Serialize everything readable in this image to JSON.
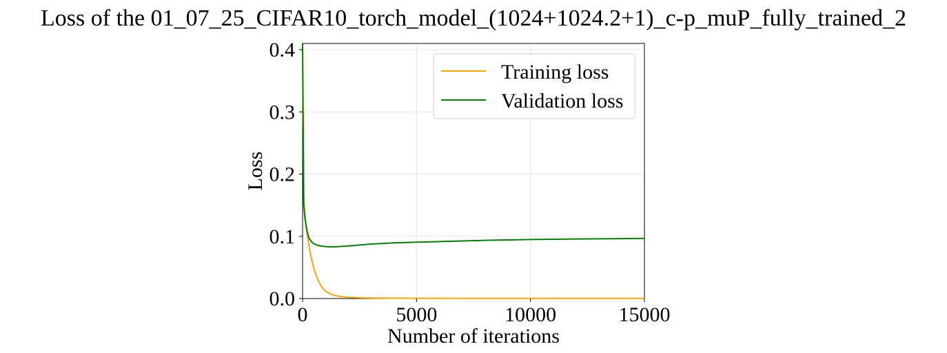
{
  "chart_data": {
    "type": "line",
    "title": "Loss of the 01_07_25_CIFAR10_torch_model_(1024+1024.2+1)_c-p_muP_fully_trained_2",
    "xlabel": "Number of iterations",
    "ylabel": "Loss",
    "xlim": [
      0,
      15000
    ],
    "ylim": [
      0,
      0.41
    ],
    "xticks": [
      0,
      5000,
      10000,
      15000
    ],
    "xtick_labels": [
      "0",
      "5000",
      "10000",
      "15000"
    ],
    "yticks": [
      0.0,
      0.1,
      0.2,
      0.3,
      0.4
    ],
    "ytick_labels": [
      "0.0",
      "0.1",
      "0.2",
      "0.3",
      "0.4"
    ],
    "grid": true,
    "legend_position": "top-right",
    "series": [
      {
        "name": "Training loss",
        "color": "#ffa500",
        "x": [
          0,
          50,
          100,
          150,
          200,
          300,
          400,
          500,
          600,
          700,
          800,
          900,
          1000,
          1200,
          1400,
          1600,
          1800,
          2000,
          2500,
          3000,
          4000,
          5000,
          7000,
          10000,
          12500,
          15000
        ],
        "y": [
          0.41,
          0.16,
          0.135,
          0.118,
          0.104,
          0.08,
          0.062,
          0.048,
          0.037,
          0.028,
          0.021,
          0.016,
          0.012,
          0.008,
          0.005,
          0.0035,
          0.0025,
          0.002,
          0.0012,
          0.0008,
          0.0005,
          0.0004,
          0.0003,
          0.0002,
          0.0002,
          0.0002
        ]
      },
      {
        "name": "Validation loss",
        "color": "#008000",
        "x": [
          0,
          50,
          100,
          150,
          200,
          250,
          300,
          400,
          500,
          700,
          1000,
          1300,
          1600,
          2000,
          2500,
          3000,
          3500,
          4000,
          5000,
          6000,
          7000,
          8000,
          9000,
          10000,
          11000,
          12000,
          13000,
          14000,
          15000
        ],
        "y": [
          0.41,
          0.15,
          0.13,
          0.118,
          0.108,
          0.101,
          0.096,
          0.091,
          0.088,
          0.085,
          0.0835,
          0.083,
          0.0835,
          0.0845,
          0.086,
          0.0875,
          0.0885,
          0.0895,
          0.0905,
          0.0915,
          0.0925,
          0.0935,
          0.0942,
          0.0948,
          0.0953,
          0.0957,
          0.096,
          0.0963,
          0.0966
        ]
      }
    ]
  }
}
